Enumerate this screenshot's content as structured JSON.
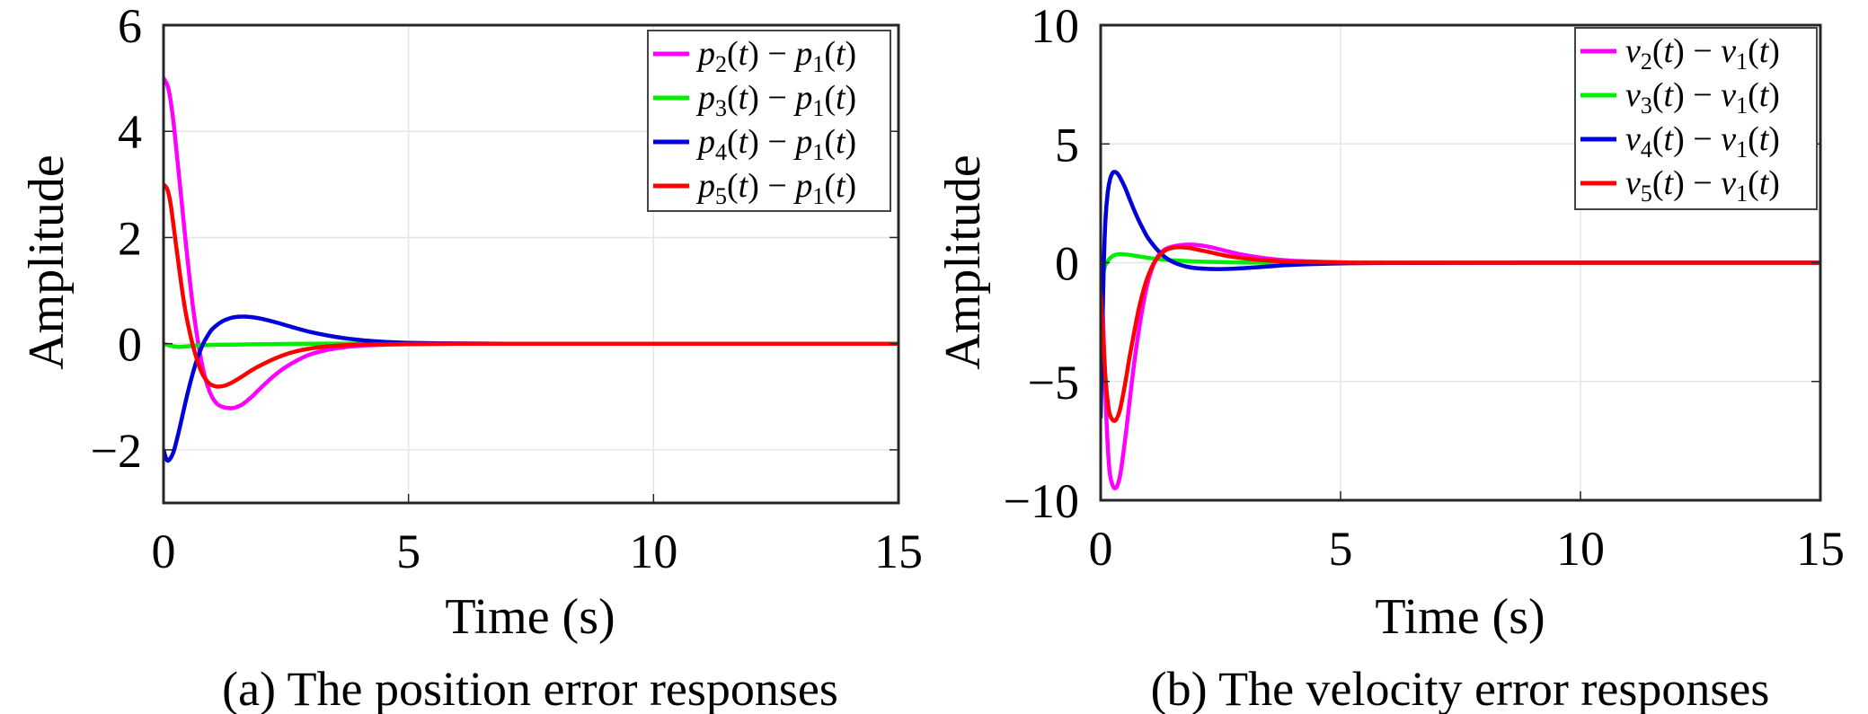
{
  "chart_data": [
    {
      "id": "a",
      "type": "line",
      "title": "",
      "caption": "(a) The position error responses",
      "xlabel": "Time (s)",
      "ylabel": "Amplitude",
      "xlim": [
        0,
        15
      ],
      "ylim": [
        -3,
        6
      ],
      "xticks": [
        0,
        5,
        10,
        15
      ],
      "yticks": [
        -2,
        0,
        2,
        4,
        6
      ],
      "ytick_labels": [
        "−2",
        "0",
        "2",
        "4",
        "6"
      ],
      "grid": true,
      "legend_position": "upper right",
      "series": [
        {
          "name": "p2(t) − p1(t)",
          "base": "p",
          "sub": "2",
          "ref_sub": "1",
          "color": "#FF00FF",
          "x": [
            0,
            0.1,
            0.2,
            0.3,
            0.4,
            0.5,
            0.6,
            0.7,
            0.8,
            0.9,
            1.0,
            1.1,
            1.2,
            1.3,
            1.43,
            1.6,
            1.8,
            2.0,
            2.3,
            2.6,
            3.0,
            3.5,
            4.0,
            4.5,
            5.0,
            6.0,
            7.0,
            10.0,
            15.0
          ],
          "y": [
            5.0,
            4.8,
            4.2,
            3.3,
            2.4,
            1.5,
            0.7,
            0.05,
            -0.45,
            -0.8,
            -1.02,
            -1.14,
            -1.19,
            -1.21,
            -1.21,
            -1.15,
            -1.0,
            -0.82,
            -0.57,
            -0.38,
            -0.2,
            -0.09,
            -0.04,
            -0.02,
            -0.01,
            0,
            0,
            0,
            0
          ]
        },
        {
          "name": "p3(t) − p1(t)",
          "base": "p",
          "sub": "3",
          "ref_sub": "1",
          "color": "#00EE00",
          "x": [
            0,
            0.15,
            0.3,
            0.5,
            0.8,
            1.2,
            2.0,
            3.0,
            5.0,
            10.0,
            15.0
          ],
          "y": [
            0.0,
            -0.04,
            -0.06,
            -0.05,
            -0.03,
            -0.02,
            -0.01,
            0,
            0,
            0,
            0
          ]
        },
        {
          "name": "p4(t) − p1(t)",
          "base": "p",
          "sub": "4",
          "ref_sub": "1",
          "color": "#0000DD",
          "x": [
            0,
            0.05,
            0.1,
            0.2,
            0.3,
            0.4,
            0.5,
            0.6,
            0.7,
            0.8,
            0.9,
            1.0,
            1.2,
            1.4,
            1.6,
            1.8,
            2.0,
            2.3,
            2.6,
            3.0,
            3.5,
            4.0,
            4.5,
            5.0,
            6.0,
            7.0,
            10.0,
            15.0
          ],
          "y": [
            -2.0,
            -2.15,
            -2.2,
            -2.05,
            -1.7,
            -1.3,
            -0.9,
            -0.55,
            -0.25,
            -0.02,
            0.15,
            0.28,
            0.42,
            0.49,
            0.51,
            0.5,
            0.47,
            0.4,
            0.32,
            0.22,
            0.13,
            0.07,
            0.035,
            0.015,
            0.005,
            0,
            0,
            0
          ]
        },
        {
          "name": "p5(t) − p1(t)",
          "base": "p",
          "sub": "5",
          "ref_sub": "1",
          "color": "#FF0000",
          "x": [
            0,
            0.08,
            0.15,
            0.25,
            0.35,
            0.45,
            0.55,
            0.65,
            0.75,
            0.85,
            0.95,
            1.05,
            1.12,
            1.25,
            1.4,
            1.6,
            1.8,
            2.0,
            2.3,
            2.6,
            3.0,
            3.5,
            4.0,
            5.0,
            6.0,
            10.0,
            15.0
          ],
          "y": [
            3.0,
            2.9,
            2.6,
            1.9,
            1.2,
            0.6,
            0.15,
            -0.2,
            -0.48,
            -0.66,
            -0.76,
            -0.8,
            -0.81,
            -0.79,
            -0.73,
            -0.62,
            -0.5,
            -0.4,
            -0.27,
            -0.17,
            -0.09,
            -0.04,
            -0.02,
            -0.005,
            0,
            0,
            0
          ]
        }
      ]
    },
    {
      "id": "b",
      "type": "line",
      "title": "",
      "caption": "(b) The velocity error responses",
      "xlabel": "Time (s)",
      "ylabel": "Amplitude",
      "xlim": [
        0,
        15
      ],
      "ylim": [
        -10,
        10
      ],
      "xticks": [
        0,
        5,
        10,
        15
      ],
      "yticks": [
        -10,
        -5,
        0,
        5,
        10
      ],
      "ytick_labels": [
        "−10",
        "−5",
        "0",
        "5",
        "10"
      ],
      "grid": true,
      "legend_position": "upper right",
      "series": [
        {
          "name": "v2(t) − v1(t)",
          "base": "v",
          "sub": "2",
          "ref_sub": "1",
          "color": "#FF00FF",
          "x": [
            0,
            0.05,
            0.1,
            0.15,
            0.2,
            0.3,
            0.4,
            0.5,
            0.6,
            0.7,
            0.8,
            0.9,
            1.0,
            1.1,
            1.2,
            1.3,
            1.4,
            1.6,
            1.8,
            2.0,
            2.3,
            2.6,
            3.0,
            3.5,
            4.0,
            5.0,
            6.0,
            10.0,
            15.0
          ],
          "y": [
            0.0,
            -2.5,
            -5.5,
            -7.8,
            -9.0,
            -9.5,
            -9.0,
            -7.6,
            -5.9,
            -4.2,
            -2.8,
            -1.6,
            -0.7,
            -0.1,
            0.3,
            0.5,
            0.62,
            0.72,
            0.76,
            0.75,
            0.65,
            0.5,
            0.32,
            0.17,
            0.08,
            0.02,
            0,
            0,
            0
          ]
        },
        {
          "name": "v3(t) − v1(t)",
          "base": "v",
          "sub": "3",
          "ref_sub": "1",
          "color": "#00EE00",
          "x": [
            0,
            0.05,
            0.1,
            0.2,
            0.3,
            0.4,
            0.5,
            0.7,
            1.0,
            1.5,
            2.0,
            3.0,
            4.0,
            6.0,
            10.0,
            15.0
          ],
          "y": [
            -1.0,
            -0.5,
            -0.1,
            0.2,
            0.33,
            0.36,
            0.35,
            0.3,
            0.2,
            0.1,
            0.05,
            0.01,
            0,
            0,
            0,
            0
          ]
        },
        {
          "name": "v4(t) − v1(t)",
          "base": "v",
          "sub": "4",
          "ref_sub": "1",
          "color": "#0000DD",
          "x": [
            0,
            0.03,
            0.06,
            0.1,
            0.15,
            0.2,
            0.25,
            0.3,
            0.35,
            0.4,
            0.5,
            0.6,
            0.7,
            0.8,
            0.9,
            1.0,
            1.2,
            1.4,
            1.6,
            1.8,
            2.0,
            2.4,
            2.8,
            3.2,
            3.6,
            4.0,
            5.0,
            6.0,
            10.0,
            15.0
          ],
          "y": [
            -6.5,
            -3.5,
            -0.5,
            1.8,
            3.0,
            3.55,
            3.78,
            3.82,
            3.75,
            3.6,
            3.2,
            2.7,
            2.2,
            1.75,
            1.35,
            1.0,
            0.5,
            0.15,
            -0.05,
            -0.17,
            -0.23,
            -0.27,
            -0.25,
            -0.2,
            -0.14,
            -0.09,
            -0.03,
            -0.01,
            0,
            0
          ]
        },
        {
          "name": "v5(t) − v1(t)",
          "base": "v",
          "sub": "5",
          "ref_sub": "1",
          "color": "#FF0000",
          "x": [
            0,
            0.05,
            0.1,
            0.15,
            0.2,
            0.3,
            0.4,
            0.5,
            0.6,
            0.7,
            0.8,
            0.9,
            1.0,
            1.1,
            1.2,
            1.3,
            1.4,
            1.6,
            1.8,
            2.0,
            2.3,
            2.6,
            3.0,
            3.5,
            4.0,
            5.0,
            6.0,
            10.0,
            15.0
          ],
          "y": [
            -1.3,
            -3.0,
            -4.8,
            -5.9,
            -6.45,
            -6.65,
            -6.2,
            -5.2,
            -4.0,
            -2.9,
            -1.9,
            -1.1,
            -0.5,
            -0.05,
            0.25,
            0.45,
            0.57,
            0.65,
            0.63,
            0.56,
            0.43,
            0.3,
            0.18,
            0.09,
            0.04,
            0.01,
            0,
            0,
            0
          ]
        }
      ]
    }
  ],
  "figure": {
    "panels": [
      {
        "caption": "(a) The position error responses",
        "xlabel": "Time (s)",
        "ylabel": "Amplitude"
      },
      {
        "caption": "(b) The velocity error responses",
        "xlabel": "Time (s)",
        "ylabel": "Amplitude"
      }
    ]
  }
}
